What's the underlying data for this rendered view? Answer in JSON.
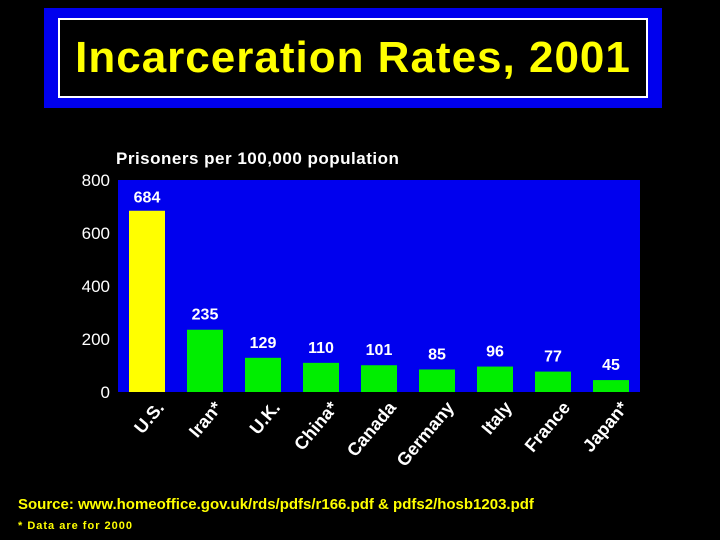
{
  "page": {
    "title": "Incarceration Rates, 2001",
    "source": "Source: www.homeoffice.gov.uk/rds/pdfs/r166.pdf & pdfs2/hosb1203.pdf",
    "note": "* Data are for 2000"
  },
  "colors": {
    "background": "#000000",
    "plot_area": "#0000ee",
    "highlight_bar": "#ffff00",
    "bar": "#00ee00",
    "text": "#ffffff",
    "title_text": "#ffff00"
  },
  "chart_data": {
    "type": "bar",
    "title": "Prisoners per 100,000 population",
    "categories": [
      "U.S.",
      "Iran*",
      "U.K.",
      "China*",
      "Canada",
      "Germany",
      "Italy",
      "France",
      "Japan*"
    ],
    "values": [
      684,
      235,
      129,
      110,
      101,
      85,
      96,
      77,
      45
    ],
    "highlight_index": 0,
    "ylim": [
      0,
      800
    ],
    "yticks": [
      0,
      200,
      400,
      600,
      800
    ],
    "grid": false,
    "legend": "none"
  }
}
